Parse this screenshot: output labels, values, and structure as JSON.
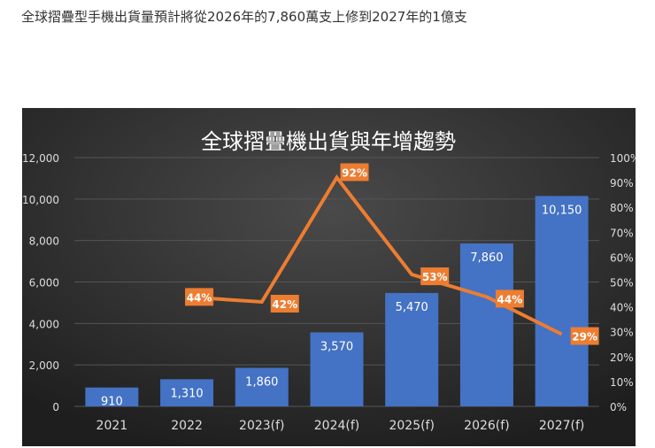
{
  "headline": "全球摺疊型手機出貨量預計將從2026年的7,860萬支上修到2027年的1億支",
  "chart_data": {
    "type": "bar+line",
    "title": "全球摺疊機出貨與年增趨勢",
    "categories": [
      "2021",
      "2022",
      "2023(f)",
      "2024(f)",
      "2025(f)",
      "2026(f)",
      "2027(f)"
    ],
    "bar_values": [
      910,
      1310,
      1860,
      3570,
      5470,
      7860,
      10150
    ],
    "bar_labels": [
      "910",
      "1,310",
      "1,860",
      "3,570",
      "5,470",
      "7,860",
      "10,150"
    ],
    "line_values": [
      null,
      44,
      42,
      92,
      53,
      44,
      29
    ],
    "line_labels": [
      "",
      "44%",
      "42%",
      "92%",
      "53%",
      "44%",
      "29%"
    ],
    "y_left": {
      "range": [
        0,
        12000
      ],
      "ticks": [
        "0",
        "2,000",
        "4,000",
        "6,000",
        "8,000",
        "10,000",
        "12,000"
      ]
    },
    "y_right": {
      "range": [
        0,
        100
      ],
      "ticks": [
        "0%",
        "10%",
        "20%",
        "30%",
        "40%",
        "50%",
        "60%",
        "70%",
        "80%",
        "90%",
        "100%"
      ]
    },
    "grid": true,
    "colors": {
      "bar": "#4472c4",
      "line": "#ed7d31",
      "background": "#2b2b2b",
      "text": "#ffffff"
    }
  }
}
